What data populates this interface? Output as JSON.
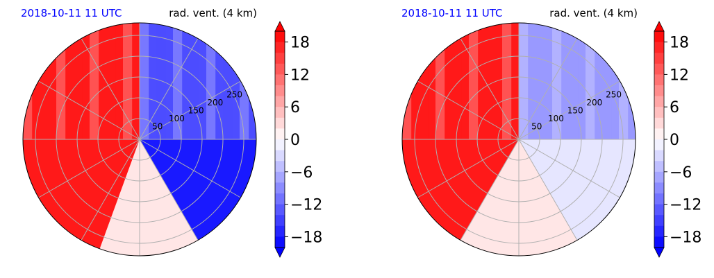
{
  "panels": [
    {
      "datetime": "2018-10-11 11 UTC",
      "field": "rad. vent. (4 km)",
      "radial_labels": [
        "50",
        "100",
        "150",
        "200",
        "250"
      ],
      "sectors": [
        {
          "from_deg": 270,
          "to_deg": 360,
          "level": 18,
          "style": "vertical-bands-red"
        },
        {
          "from_deg": 0,
          "to_deg": 90,
          "level": -14,
          "style": "vertical-bands-blue"
        },
        {
          "from_deg": 90,
          "to_deg": 150,
          "level": -18,
          "style": "solid"
        },
        {
          "from_deg": 150,
          "to_deg": 200,
          "level": 2,
          "style": "solid"
        },
        {
          "from_deg": 200,
          "to_deg": 270,
          "level": 18,
          "style": "solid"
        }
      ]
    },
    {
      "datetime": "2018-10-11 11 UTC",
      "field": "rad. vent. (4 km)",
      "radial_labels": [
        "50",
        "100",
        "150",
        "200",
        "250"
      ],
      "sectors": [
        {
          "from_deg": 270,
          "to_deg": 360,
          "level": 18,
          "style": "vertical-bands-red"
        },
        {
          "from_deg": 0,
          "to_deg": 90,
          "level": -8,
          "style": "vertical-bands-blue"
        },
        {
          "from_deg": 90,
          "to_deg": 150,
          "level": -2,
          "style": "solid"
        },
        {
          "from_deg": 150,
          "to_deg": 210,
          "level": 2,
          "style": "solid"
        },
        {
          "from_deg": 210,
          "to_deg": 270,
          "level": 18,
          "style": "solid"
        }
      ]
    }
  ],
  "colorbar": {
    "ticks": [
      "18",
      "12",
      "6",
      "0",
      "−6",
      "−12",
      "−18"
    ],
    "range": [
      -20,
      20
    ],
    "colors": {
      "neg": "#0000ff",
      "zero": "#ffffff",
      "pos": "#ff0000"
    }
  },
  "chart_data": [
    {
      "type": "heatmap",
      "projection": "polar",
      "title": "2018-10-11 11 UTC",
      "subtitle": "rad. vent. (4 km)",
      "radial_ticks": [
        50,
        100,
        150,
        200,
        250
      ],
      "angular_gridlines_deg": 30,
      "colorbar_ticks": [
        18,
        12,
        6,
        0,
        -6,
        -12,
        -18
      ],
      "colorbar_range": [
        -20,
        20
      ],
      "extend": "both",
      "cmap": "bwr"
    },
    {
      "type": "heatmap",
      "projection": "polar",
      "title": "2018-10-11 11 UTC",
      "subtitle": "rad. vent. (4 km)",
      "radial_ticks": [
        50,
        100,
        150,
        200,
        250
      ],
      "angular_gridlines_deg": 30,
      "colorbar_ticks": [
        18,
        12,
        6,
        0,
        -6,
        -12,
        -18
      ],
      "colorbar_range": [
        -20,
        20
      ],
      "extend": "both",
      "cmap": "bwr"
    }
  ]
}
